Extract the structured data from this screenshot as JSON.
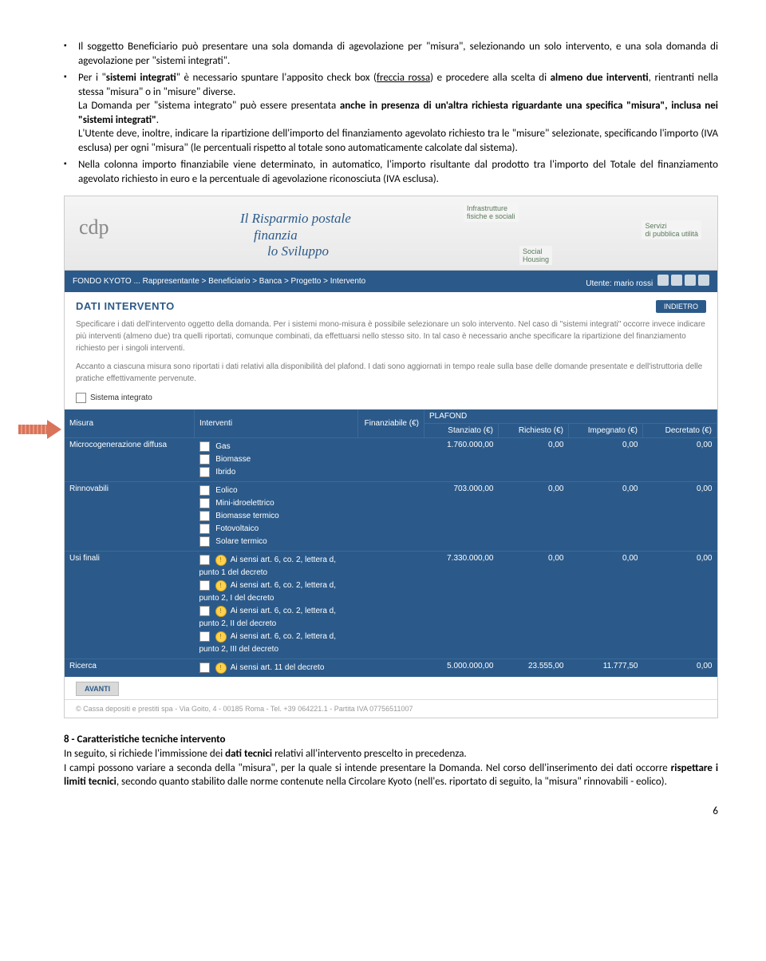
{
  "bullets": {
    "b1_a": "Il soggetto Beneficiario può presentare una sola domanda di agevolazione per \"misura\", selezionando un solo intervento, e una sola domanda di agevolazione per \"sistemi integrati\".",
    "b2_a": "Per i \"",
    "b2_b": "sistemi integrati",
    "b2_c": "\" è necessario spuntare l'apposito check box (",
    "b2_d": "freccia rossa",
    "b2_e": ") e procedere alla scelta di ",
    "b2_f": "almeno due interventi",
    "b2_g": ", rientranti nella stessa \"misura\" o in \"misure\" diverse.",
    "b2_h": "La Domanda per \"sistema integrato\" può essere presentata ",
    "b2_i": "anche in presenza di un'altra richiesta riguardante una specifica \"misura\", inclusa nei \"sistemi integrati\"",
    "b2_j": ".",
    "b2_k": "L'Utente deve, inoltre, indicare la ripartizione dell'importo del finanziamento agevolato richiesto tra le \"misure\" selezionate, specificando l'importo (IVA esclusa) per ogni \"misura\" (le percentuali rispetto al totale sono automaticamente calcolate dal sistema).",
    "b3_a": "Nella colonna importo finanziabile viene determinato, in automatico, l'importo risultante dal prodotto tra l'importo del Totale del finanziamento agevolato richiesto in euro e la percentuale di agevolazione riconosciuta (IVA esclusa)."
  },
  "banner": {
    "logo": "cdp",
    "title_l1": "Il Risparmio postale",
    "title_l2": "finanzia",
    "title_l3": "lo Sviluppo",
    "tag1": "Infrastrutture",
    "tag1b": "fisiche e sociali",
    "tag2": "Social",
    "tag2b": "Housing",
    "tag3": "Servizi",
    "tag3b": "di pubblica utilità"
  },
  "crumb": {
    "chain": "FONDO KYOTO   ... Rappresentante > Beneficiario > Banca > Progetto > Intervento",
    "user": "Utente: mario rossi"
  },
  "section": {
    "title": "DATI INTERVENTO",
    "back": "INDIETRO",
    "p1": "Specificare i dati dell'intervento oggetto della domanda. Per i sistemi mono-misura è possibile selezionare un solo intervento. Nel caso di \"sistemi integrati\" occorre invece indicare più interventi (almeno due) tra quelli riportati, comunque combinati, da effettuarsi nello stesso sito. In tal caso è necessario anche specificare la ripartizione del finanziamento richiesto per i singoli interventi.",
    "p2": "Accanto a ciascuna misura sono riportati i dati relativi alla disponibilità del plafond. I dati sono aggiornati in tempo reale sulla base delle domande presentate e dell'istruttoria delle pratiche effettivamente pervenute.",
    "cb": "Sistema integrato"
  },
  "table": {
    "h_misura": "Misura",
    "h_interventi": "Interventi",
    "h_fin": "Finanziabile (€)",
    "h_plafond": "PLAFOND",
    "h_stanz": "Stanziato (€)",
    "h_rich": "Richiesto (€)",
    "h_imp": "Impegnato (€)",
    "h_decr": "Decretato (€)",
    "rows": [
      {
        "misura": "Microcogenerazione diffusa",
        "intv": [
          "Gas",
          "Biomasse",
          "Ibrido"
        ],
        "bulb": [
          0,
          0,
          0
        ],
        "stanz": "1.760.000,00",
        "rich": "0,00",
        "imp": "0,00",
        "decr": "0,00"
      },
      {
        "misura": "Rinnovabili",
        "intv": [
          "Eolico",
          "Mini-idroelettrico",
          "Biomasse termico",
          "Fotovoltaico",
          "Solare termico"
        ],
        "bulb": [
          0,
          0,
          0,
          0,
          0
        ],
        "stanz": "703.000,00",
        "rich": "0,00",
        "imp": "0,00",
        "decr": "0,00"
      },
      {
        "misura": "Usi finali",
        "intv": [
          "Ai sensi art. 6, co. 2, lettera d, punto 1 del decreto",
          "Ai sensi art. 6, co. 2, lettera d, punto 2, I del decreto",
          "Ai sensi art. 6, co. 2, lettera d, punto 2, II del decreto",
          "Ai sensi art. 6, co. 2, lettera d, punto 2, III del decreto"
        ],
        "bulb": [
          1,
          1,
          1,
          1
        ],
        "stanz": "7.330.000,00",
        "rich": "0,00",
        "imp": "0,00",
        "decr": "0,00"
      },
      {
        "misura": "Ricerca",
        "intv": [
          "Ai sensi art. 11 del decreto"
        ],
        "bulb": [
          1
        ],
        "stanz": "5.000.000,00",
        "rich": "23.555,00",
        "imp": "11.777,50",
        "decr": "0,00"
      }
    ],
    "avanti": "AVANTI",
    "footer": "© Cassa depositi e prestiti spa - Via Goito, 4 - 00185 Roma - Tel. +39 064221.1 - Partita IVA 07756511007"
  },
  "post": {
    "h": "8 - Caratteristiche tecniche intervento",
    "p1a": "In seguito, si richiede l'immissione dei ",
    "p1b": "dati tecnici",
    "p1c": " relativi all'intervento prescelto in precedenza.",
    "p2a": "I campi possono variare a seconda della \"misura\", per la quale si intende presentare la Domanda. Nel corso dell'inserimento dei dati occorre ",
    "p2b": "rispettare i limiti tecnici",
    "p2c": ", secondo quanto stabilito dalle norme contenute nella Circolare Kyoto (nell'es. riportato di seguito, la \"misura\" rinnovabili - eolico)."
  },
  "page": "6"
}
